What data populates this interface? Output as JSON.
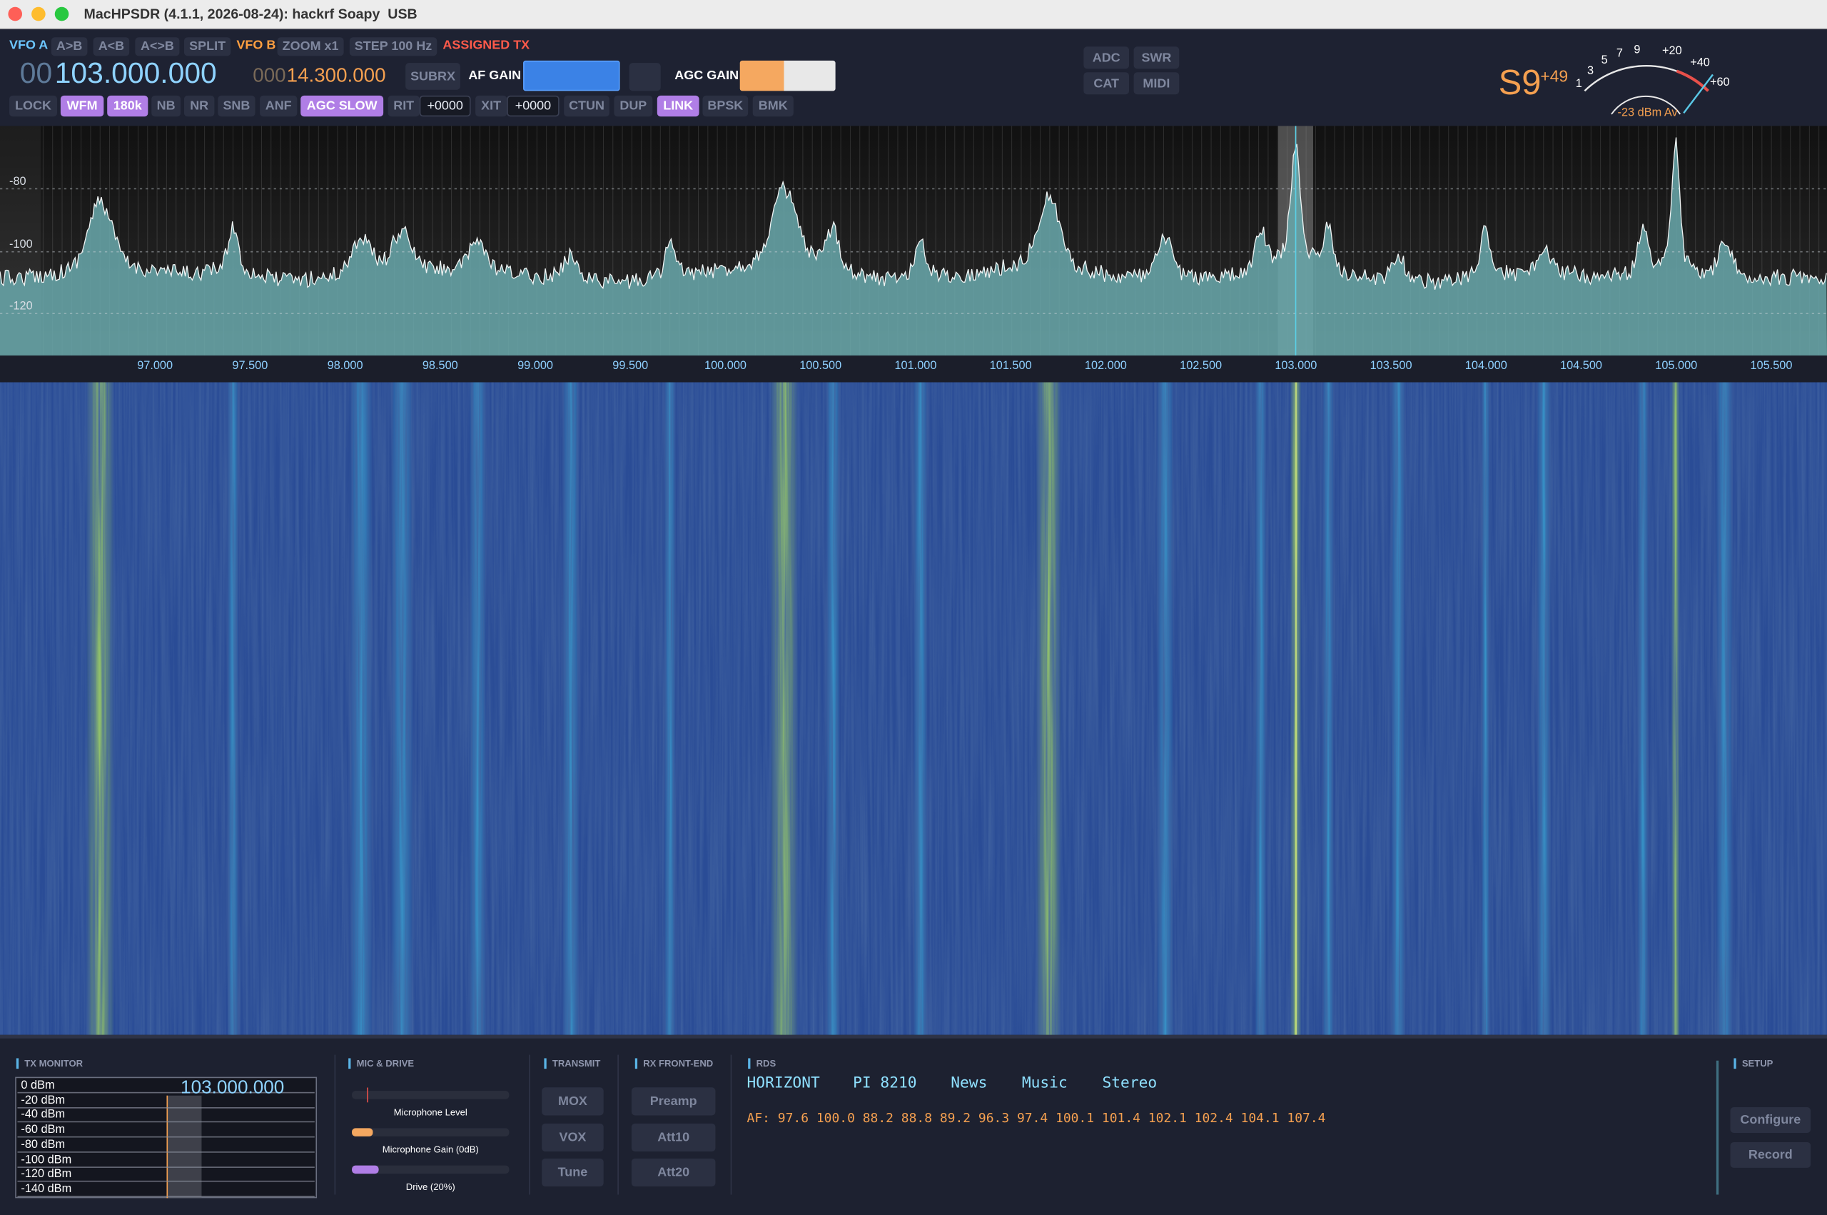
{
  "window": {
    "title": "MacHPSDR (4.1.1, 2026-08-24): hackrf Soapy  USB"
  },
  "toolbar": {
    "row1": [
      {
        "label": "VFO A",
        "style": "vfo-a"
      },
      {
        "label": "A>B",
        "style": "button"
      },
      {
        "label": "A<B",
        "style": "button"
      },
      {
        "label": "A<>B",
        "style": "button"
      },
      {
        "label": "SPLIT",
        "style": "button"
      },
      {
        "label": "VFO B",
        "style": "vfo-b"
      },
      {
        "label": "ZOOM x1",
        "style": "button"
      },
      {
        "label": "STEP 100 Hz",
        "style": "button"
      },
      {
        "label": "ASSIGNED TX",
        "style": "alert"
      }
    ],
    "vfo_a": {
      "lead": "00",
      "frequency": "103.000.000"
    },
    "vfo_b": {
      "lead": "000",
      "frequency": "14.300.000"
    },
    "subrx": "SUBRX",
    "af_gain": "AF GAIN",
    "agc_gain": "AGC GAIN",
    "row3": [
      {
        "label": "LOCK",
        "style": "button"
      },
      {
        "label": "WFM",
        "style": "active"
      },
      {
        "label": "180k",
        "style": "active"
      },
      {
        "label": "NB",
        "style": "button"
      },
      {
        "label": "NR",
        "style": "button"
      },
      {
        "label": "SNB",
        "style": "button"
      },
      {
        "label": "ANF",
        "style": "button"
      },
      {
        "label": "AGC SLOW",
        "style": "active"
      },
      {
        "label": "RIT",
        "style": "button"
      },
      {
        "label": "+0000",
        "style": "value"
      },
      {
        "label": "XIT",
        "style": "button"
      },
      {
        "label": "+0000",
        "style": "value"
      },
      {
        "label": "CTUN",
        "style": "button"
      },
      {
        "label": "DUP",
        "style": "button"
      },
      {
        "label": "LINK",
        "style": "active"
      },
      {
        "label": "BPSK",
        "style": "button"
      },
      {
        "label": "BMK",
        "style": "button"
      }
    ],
    "side_buttons": [
      "ADC",
      "SWR",
      "CAT",
      "MIDI"
    ]
  },
  "s_meter": {
    "reading": "S9",
    "over": "+49",
    "scale": [
      "1",
      "3",
      "5",
      "7",
      "9",
      "+20",
      "+40",
      "+60"
    ],
    "average": "-23 dBm Av"
  },
  "spectrum": {
    "level_labels": [
      "-80",
      "-100",
      "-120"
    ],
    "frequency_labels": [
      "97.000",
      "97.500",
      "98.000",
      "98.500",
      "99.000",
      "99.500",
      "100.000",
      "100.500",
      "101.000",
      "101.500",
      "102.000",
      "102.500",
      "103.000",
      "103.500",
      "104.000",
      "104.500",
      "105.000",
      "105.500"
    ]
  },
  "bottom": {
    "tx_monitor": {
      "title": "TX MONITOR",
      "frequency": "103.000.000",
      "levels": [
        "0 dBm",
        "-20 dBm",
        "-40 dBm",
        "-60 dBm",
        "-80 dBm",
        "-100 dBm",
        "-120 dBm",
        "-140 dBm"
      ]
    },
    "mic_drive": {
      "title": "MIC & DRIVE",
      "sliders": [
        "Microphone Level",
        "Microphone Gain (0dB)",
        "Drive (20%)"
      ]
    },
    "transmit": {
      "title": "TRANSMIT",
      "buttons": [
        "MOX",
        "VOX",
        "Tune"
      ]
    },
    "rx_front_end": {
      "title": "RX FRONT-END",
      "buttons": [
        "Preamp",
        "Att10",
        "Att20"
      ]
    },
    "rds": {
      "title": "RDS",
      "station": "HORIZONT",
      "pi": "PI 8210",
      "flags": [
        "News",
        "Music",
        "Stereo"
      ],
      "alt_frequencies": "AF: 97.6 100.0 88.2 88.8 89.2 96.3 97.4 100.1 101.4 102.1 102.4 104.1 107.4"
    },
    "setup": {
      "title": "SETUP",
      "buttons": [
        "Configure",
        "Record"
      ]
    }
  }
}
